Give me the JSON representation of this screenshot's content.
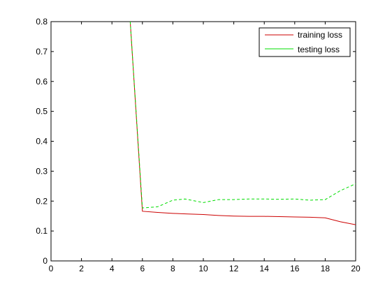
{
  "chart_data": {
    "type": "line",
    "title": "",
    "xlabel": "",
    "ylabel": "",
    "xlim": [
      0,
      20
    ],
    "ylim": [
      0,
      0.8
    ],
    "x_ticks": [
      "0",
      "2",
      "4",
      "6",
      "8",
      "10",
      "12",
      "14",
      "16",
      "18",
      "20"
    ],
    "y_ticks": [
      "0",
      "0.1",
      "0.2",
      "0.3",
      "0.4",
      "0.5",
      "0.6",
      "0.7",
      "0.8"
    ],
    "grid": false,
    "legend_position": "top-right",
    "series": [
      {
        "name": "training loss",
        "color": "#cc0000",
        "x": [
          5.2,
          6,
          7,
          8,
          9,
          10,
          11,
          12,
          13,
          14,
          15,
          16,
          17,
          18,
          19,
          20
        ],
        "y": [
          0.8,
          0.166,
          0.162,
          0.159,
          0.157,
          0.155,
          0.152,
          0.15,
          0.149,
          0.149,
          0.148,
          0.147,
          0.146,
          0.144,
          0.131,
          0.121
        ]
      },
      {
        "name": "testing loss",
        "color": "#00dd00",
        "x": [
          5.2,
          6,
          7,
          8,
          8.8,
          10,
          11,
          12,
          13,
          14,
          15,
          16,
          17,
          18,
          19,
          20
        ],
        "y": [
          0.8,
          0.177,
          0.181,
          0.203,
          0.207,
          0.195,
          0.205,
          0.205,
          0.207,
          0.207,
          0.206,
          0.207,
          0.203,
          0.205,
          0.235,
          0.258
        ]
      }
    ]
  }
}
